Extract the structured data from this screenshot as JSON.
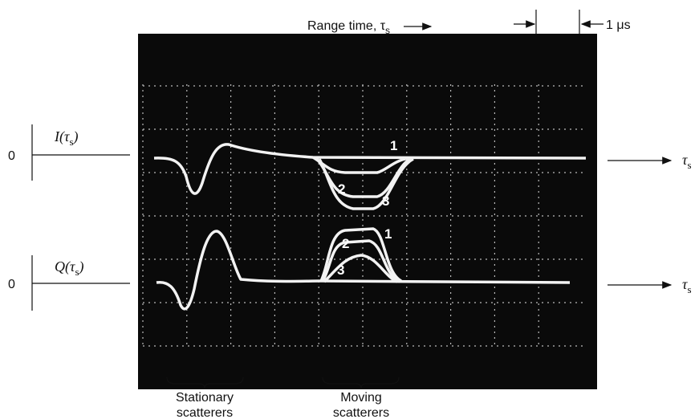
{
  "range_time": {
    "text": "Range time, τ",
    "sub": "s"
  },
  "scale": {
    "text": "1 μs"
  },
  "i_channel": {
    "zero": "0",
    "label": "I(τ",
    "sub": "s",
    "close": ")",
    "axis": "τ",
    "axis_sub": "s"
  },
  "q_channel": {
    "zero": "0",
    "label": "Q(τ",
    "sub": "s",
    "close": ")",
    "axis": "τ",
    "axis_sub": "s"
  },
  "i_curve_labels": [
    "1",
    "2",
    "3"
  ],
  "q_curve_labels": [
    "1",
    "2",
    "3"
  ],
  "stationary": {
    "line1": "Stationary",
    "line2": "scatterers"
  },
  "moving": {
    "line1": "Moving",
    "line2": "scatterers"
  }
}
